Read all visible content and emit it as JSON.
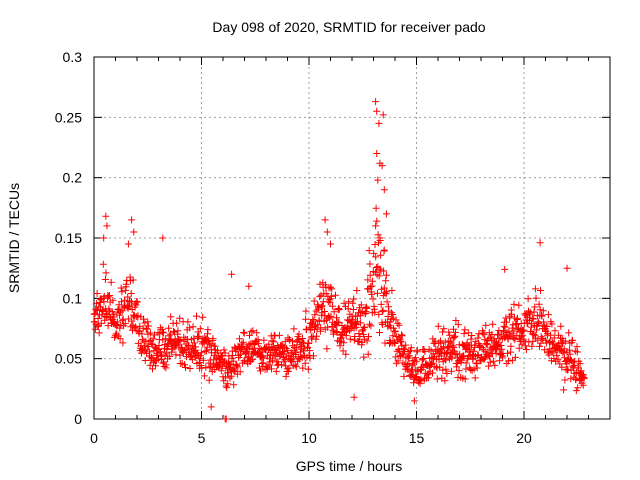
{
  "chart_data": {
    "type": "scatter",
    "title": "Day 098 of 2020, SRMTID for receiver pado",
    "xlabel": "GPS time / hours",
    "ylabel": "SRMTID / TECUs",
    "xlim": [
      0,
      24
    ],
    "ylim": [
      0,
      0.3
    ],
    "xticks": [
      0,
      5,
      10,
      15,
      20
    ],
    "xtick_labels": [
      "0",
      "5",
      "10",
      "15",
      "20"
    ],
    "yticks": [
      0,
      0.05,
      0.1,
      0.15,
      0.2,
      0.25,
      0.3
    ],
    "ytick_labels": [
      "0",
      "0.05",
      "0.1",
      "0.15",
      "0.2",
      "0.25",
      "0.3"
    ],
    "grid": true,
    "marker": "+",
    "series": [
      {
        "name": "SRMTID",
        "color": "#ff0000",
        "profile": [
          {
            "t": 0.0,
            "mean": 0.085,
            "spread": 0.03
          },
          {
            "t": 0.5,
            "mean": 0.1,
            "spread": 0.05
          },
          {
            "t": 1.0,
            "mean": 0.075,
            "spread": 0.04
          },
          {
            "t": 1.6,
            "mean": 0.1,
            "spread": 0.05
          },
          {
            "t": 2.2,
            "mean": 0.07,
            "spread": 0.04
          },
          {
            "t": 2.8,
            "mean": 0.055,
            "spread": 0.03
          },
          {
            "t": 3.5,
            "mean": 0.06,
            "spread": 0.035
          },
          {
            "t": 4.2,
            "mean": 0.065,
            "spread": 0.04
          },
          {
            "t": 5.0,
            "mean": 0.055,
            "spread": 0.04
          },
          {
            "t": 5.6,
            "mean": 0.05,
            "spread": 0.035
          },
          {
            "t": 6.2,
            "mean": 0.04,
            "spread": 0.03
          },
          {
            "t": 7.0,
            "mean": 0.06,
            "spread": 0.03
          },
          {
            "t": 8.0,
            "mean": 0.055,
            "spread": 0.03
          },
          {
            "t": 9.0,
            "mean": 0.055,
            "spread": 0.03
          },
          {
            "t": 10.0,
            "mean": 0.065,
            "spread": 0.035
          },
          {
            "t": 10.8,
            "mean": 0.095,
            "spread": 0.05
          },
          {
            "t": 11.5,
            "mean": 0.075,
            "spread": 0.04
          },
          {
            "t": 12.5,
            "mean": 0.075,
            "spread": 0.04
          },
          {
            "t": 13.2,
            "mean": 0.13,
            "spread": 0.09
          },
          {
            "t": 13.8,
            "mean": 0.085,
            "spread": 0.05
          },
          {
            "t": 14.5,
            "mean": 0.045,
            "spread": 0.025
          },
          {
            "t": 15.2,
            "mean": 0.04,
            "spread": 0.025
          },
          {
            "t": 16.0,
            "mean": 0.055,
            "spread": 0.035
          },
          {
            "t": 17.0,
            "mean": 0.055,
            "spread": 0.035
          },
          {
            "t": 18.0,
            "mean": 0.055,
            "spread": 0.03
          },
          {
            "t": 19.0,
            "mean": 0.065,
            "spread": 0.04
          },
          {
            "t": 20.0,
            "mean": 0.075,
            "spread": 0.04
          },
          {
            "t": 20.7,
            "mean": 0.08,
            "spread": 0.045
          },
          {
            "t": 21.5,
            "mean": 0.06,
            "spread": 0.04
          },
          {
            "t": 22.2,
            "mean": 0.05,
            "spread": 0.04
          },
          {
            "t": 22.8,
            "mean": 0.035,
            "spread": 0.02
          }
        ],
        "extremes": [
          {
            "x": 0.55,
            "y": 0.168
          },
          {
            "x": 0.45,
            "y": 0.15
          },
          {
            "x": 0.6,
            "y": 0.16
          },
          {
            "x": 1.75,
            "y": 0.165
          },
          {
            "x": 1.85,
            "y": 0.155
          },
          {
            "x": 1.6,
            "y": 0.145
          },
          {
            "x": 10.75,
            "y": 0.165
          },
          {
            "x": 10.85,
            "y": 0.155
          },
          {
            "x": 11.0,
            "y": 0.145
          },
          {
            "x": 13.1,
            "y": 0.263
          },
          {
            "x": 13.15,
            "y": 0.255
          },
          {
            "x": 13.45,
            "y": 0.252
          },
          {
            "x": 13.25,
            "y": 0.245
          },
          {
            "x": 13.15,
            "y": 0.22
          },
          {
            "x": 13.3,
            "y": 0.212
          },
          {
            "x": 13.4,
            "y": 0.21
          },
          {
            "x": 13.2,
            "y": 0.198
          },
          {
            "x": 13.5,
            "y": 0.19
          },
          {
            "x": 13.6,
            "y": 0.17
          },
          {
            "x": 13.1,
            "y": 0.16
          },
          {
            "x": 13.3,
            "y": 0.15
          },
          {
            "x": 13.5,
            "y": 0.14
          },
          {
            "x": 20.75,
            "y": 0.146
          },
          {
            "x": 22.0,
            "y": 0.125
          },
          {
            "x": 6.1,
            "y": 0.0
          },
          {
            "x": 6.15,
            "y": 0.0
          },
          {
            "x": 12.1,
            "y": 0.018
          },
          {
            "x": 5.45,
            "y": 0.01
          },
          {
            "x": 14.9,
            "y": 0.015
          },
          {
            "x": 3.2,
            "y": 0.15
          },
          {
            "x": 6.4,
            "y": 0.12
          },
          {
            "x": 19.1,
            "y": 0.124
          },
          {
            "x": 7.2,
            "y": 0.11
          }
        ]
      }
    ]
  }
}
